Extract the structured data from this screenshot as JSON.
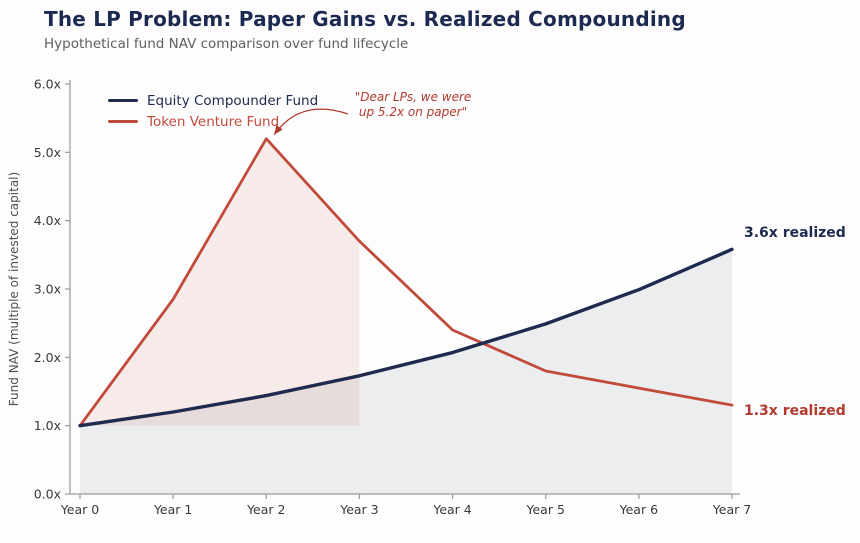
{
  "header": {
    "title": "The LP Problem: Paper Gains vs. Realized Compounding",
    "subtitle": "Hypothetical fund NAV comparison over fund lifecycle"
  },
  "chart_data": {
    "type": "line",
    "title": "The LP Problem: Paper Gains vs. Realized Compounding",
    "subtitle": "Hypothetical fund NAV comparison over fund lifecycle",
    "x_categories": [
      "Year 0",
      "Year 1",
      "Year 2",
      "Year 3",
      "Year 4",
      "Year 5",
      "Year 6",
      "Year 7"
    ],
    "xlabel": "",
    "ylabel": "Fund NAV (multiple of invested capital)",
    "ylim": [
      0,
      6
    ],
    "y_ticks": [
      0,
      1,
      2,
      3,
      4,
      5,
      6
    ],
    "y_tick_suffix": "x",
    "grid": false,
    "legend_position": "upper left",
    "series": [
      {
        "key": "equity",
        "name": "Equity Compounder Fund",
        "color": "#1e2b4f",
        "line_width": 3.4,
        "fill": "rgba(31,45,80,0.08)",
        "fill_baseline": 0,
        "values": [
          1.0,
          1.2,
          1.44,
          1.73,
          2.07,
          2.49,
          2.99,
          3.58
        ]
      },
      {
        "key": "token",
        "name": "Token Venture Fund",
        "color": "#c14b3b",
        "line_width": 2.8,
        "fill": "rgba(193,75,59,0.10)",
        "fill_baseline": 1.0,
        "fill_x_range": [
          0,
          3
        ],
        "values": [
          1.0,
          2.85,
          5.2,
          3.7,
          2.4,
          1.8,
          1.55,
          1.3
        ]
      }
    ],
    "annotation": {
      "line1": "\"Dear LPs, we were",
      "line2": "up 5.2x on paper\"",
      "color": "#b03a30",
      "target_x": 2,
      "target_y": 5.2
    },
    "end_labels": [
      {
        "key": "equity",
        "text": "3.6x realized",
        "color": "#1e2b4f"
      },
      {
        "key": "token",
        "text": "1.3x realized",
        "color": "#b43a2e"
      }
    ]
  }
}
